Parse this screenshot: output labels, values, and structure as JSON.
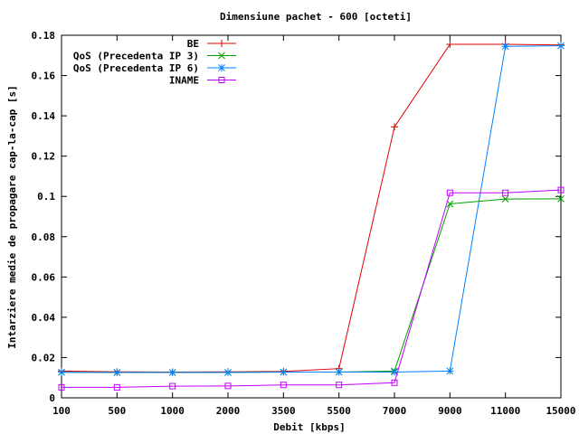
{
  "chart_data": {
    "type": "line",
    "title": "Dimensiune pachet - 600 [octeti]",
    "xlabel": "Debit [kbps]",
    "ylabel": "Intarziere medie de propagare cap-la-cap [s]",
    "categories": [
      "100",
      "500",
      "1000",
      "2000",
      "3500",
      "5500",
      "7000",
      "9000",
      "11000",
      "15000"
    ],
    "ylim": [
      0,
      0.18
    ],
    "yticks": [
      "0",
      "0.02",
      "0.04",
      "0.06",
      "0.08",
      "0.1",
      "0.12",
      "0.14",
      "0.16",
      "0.18"
    ],
    "grid": false,
    "legend_position": "top-left",
    "series": [
      {
        "name": "BE",
        "color": "#e00000",
        "marker": "plus",
        "values": [
          0.0133,
          0.0129,
          0.0128,
          0.0129,
          0.0131,
          0.0145,
          0.1345,
          0.1755,
          0.1755,
          0.1752
        ]
      },
      {
        "name": "QoS (Precedenta IP 3)",
        "color": "#00a000",
        "marker": "cross",
        "values": [
          0.0127,
          0.0126,
          0.0126,
          0.0126,
          0.0128,
          0.0128,
          0.0133,
          0.0963,
          0.0987,
          0.0988
        ]
      },
      {
        "name": "QoS (Precedenta IP 6)",
        "color": "#0080ff",
        "marker": "star",
        "values": [
          0.0127,
          0.0126,
          0.0126,
          0.0126,
          0.0128,
          0.0128,
          0.0128,
          0.0133,
          0.1745,
          0.1748
        ]
      },
      {
        "name": "INAME",
        "color": "#c000ff",
        "marker": "box",
        "values": [
          0.0052,
          0.0052,
          0.0058,
          0.0059,
          0.0064,
          0.0064,
          0.0075,
          0.1018,
          0.1018,
          0.1032
        ]
      }
    ]
  }
}
